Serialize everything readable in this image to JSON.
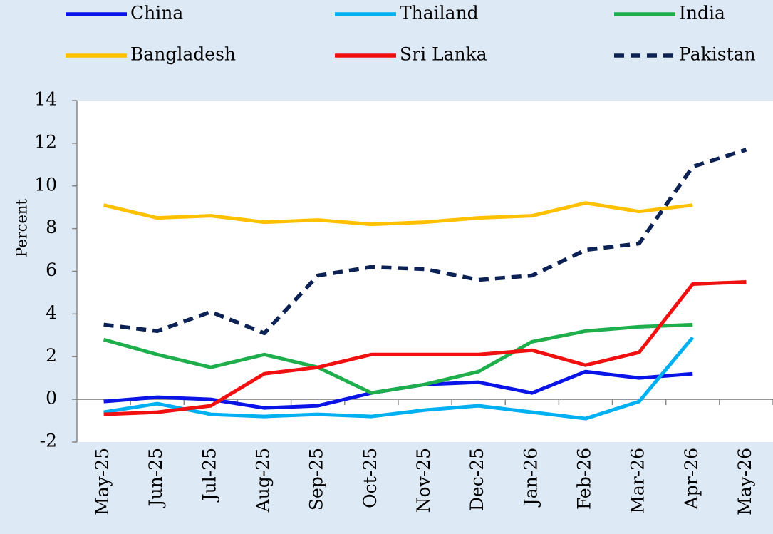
{
  "chart_data": {
    "type": "line",
    "y_label": "Percent",
    "categories": [
      "May-25",
      "Jun-25",
      "Jul-25",
      "Aug-25",
      "Sep-25",
      "Oct-25",
      "Nov-25",
      "Dec-25",
      "Jan-26",
      "Feb-26",
      "Mar-26",
      "Apr-26",
      "May-26"
    ],
    "series": [
      {
        "name": "China",
        "color": "#0a14e6",
        "values": [
          -0.1,
          0.1,
          0.0,
          -0.4,
          -0.3,
          0.3,
          0.7,
          0.8,
          0.3,
          1.3,
          1.0,
          1.2,
          null
        ]
      },
      {
        "name": "Thailand",
        "color": "#00b0f0",
        "values": [
          -0.6,
          -0.2,
          -0.7,
          -0.8,
          -0.7,
          -0.8,
          -0.5,
          -0.3,
          -0.6,
          -0.9,
          -0.1,
          2.9,
          null
        ]
      },
      {
        "name": "India",
        "color": "#1fae4c",
        "values": [
          2.8,
          2.1,
          1.5,
          2.1,
          1.5,
          0.3,
          0.7,
          1.3,
          2.7,
          3.2,
          3.4,
          3.5,
          null
        ]
      },
      {
        "name": "Bangladesh",
        "color": "#ffc000",
        "values": [
          9.1,
          8.5,
          8.6,
          8.3,
          8.4,
          8.2,
          8.3,
          8.5,
          8.6,
          9.2,
          8.8,
          9.1,
          null
        ]
      },
      {
        "name": "Sri Lanka",
        "color": "#f01010",
        "values": [
          -0.7,
          -0.6,
          -0.3,
          1.2,
          1.5,
          2.1,
          2.1,
          2.1,
          2.3,
          1.6,
          2.2,
          5.4,
          5.5
        ]
      },
      {
        "name": "Pakistan",
        "color": "#0d2254",
        "dashed": true,
        "values": [
          3.5,
          3.2,
          4.1,
          3.1,
          5.8,
          6.2,
          6.1,
          5.6,
          5.8,
          7.0,
          7.3,
          10.9,
          11.7
        ]
      }
    ],
    "ylim": [
      -2,
      14
    ],
    "yticks": [
      -2,
      0,
      2,
      4,
      6,
      8,
      10,
      12,
      14
    ],
    "legend": "top"
  }
}
